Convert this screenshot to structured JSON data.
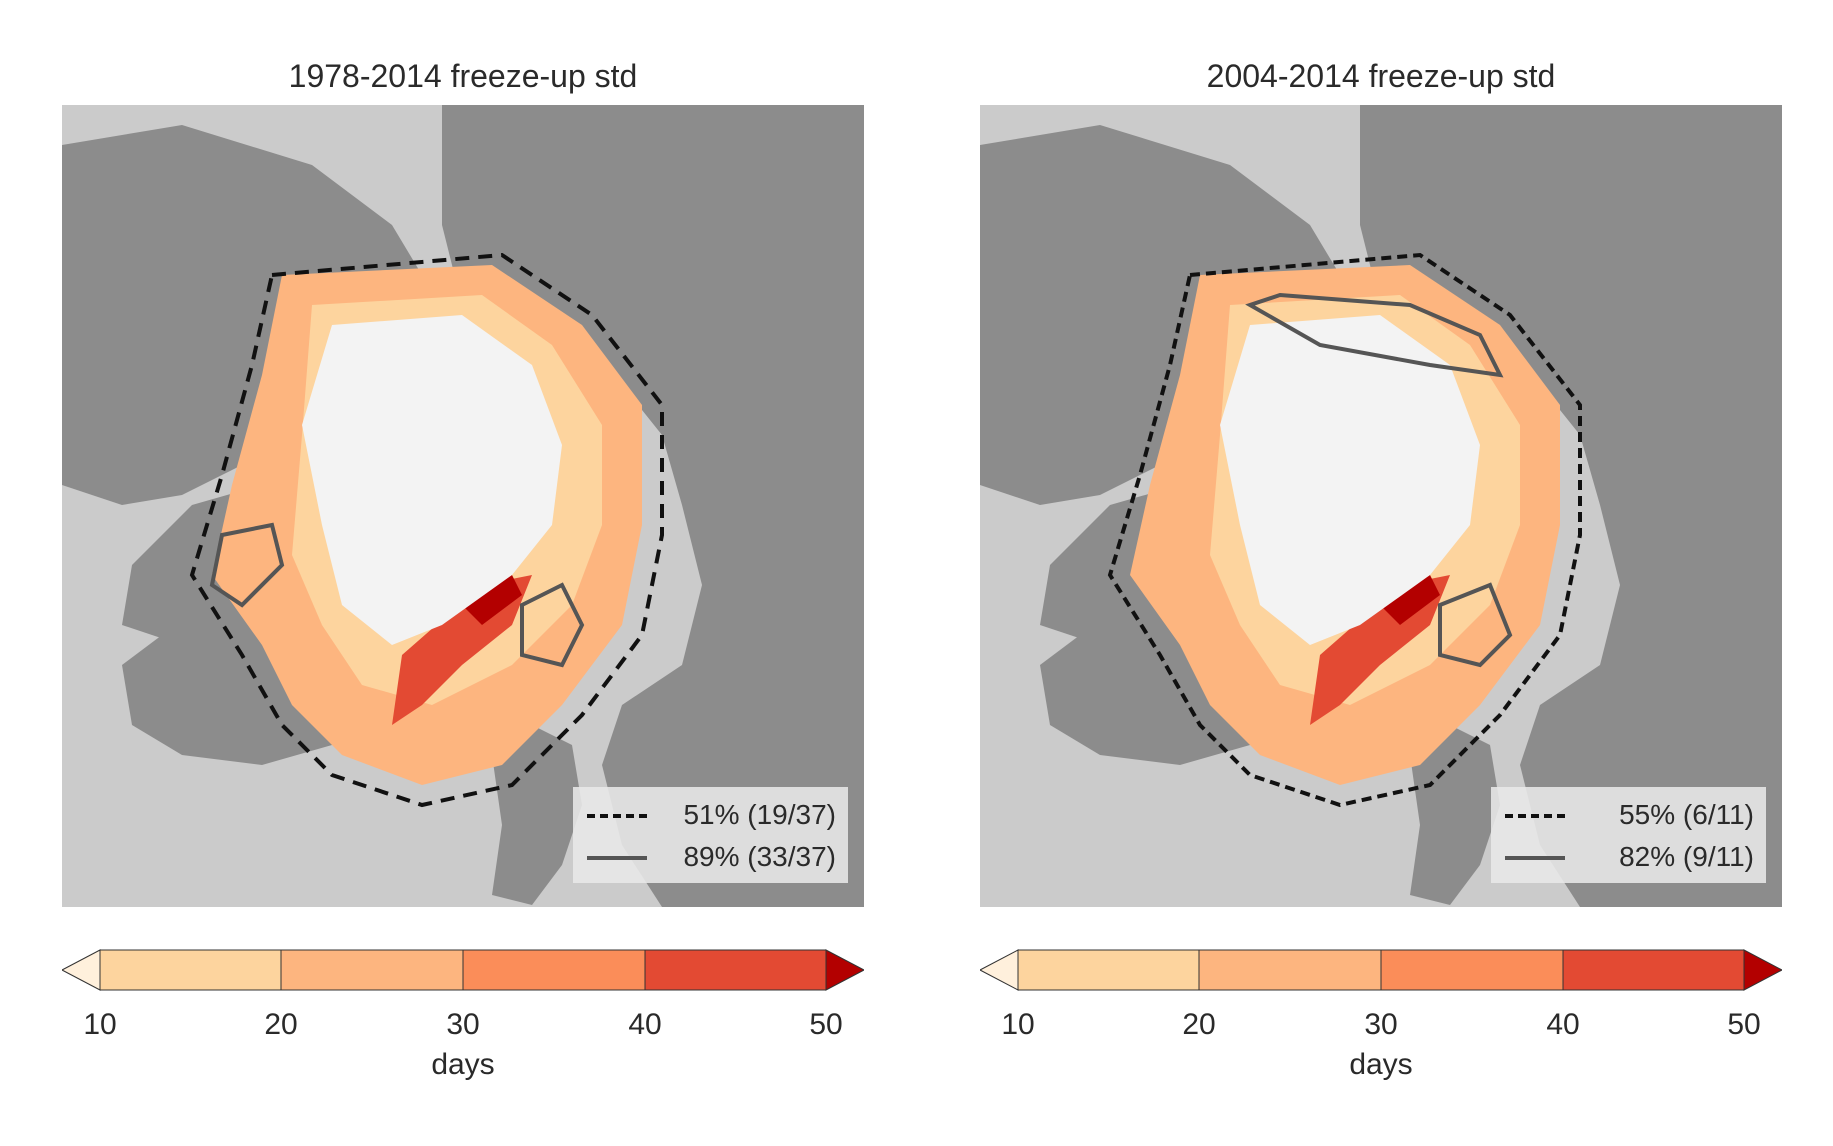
{
  "panels": [
    {
      "title": "1978-2014 freeze-up std",
      "legend": [
        {
          "style": "dashed",
          "label": "51% (19/37)"
        },
        {
          "style": "solid",
          "label": "89% (33/37)"
        }
      ]
    },
    {
      "title": "2004-2014 freeze-up std",
      "legend": [
        {
          "style": "dashed",
          "label": "55% (6/11)"
        },
        {
          "style": "solid",
          "label": "82% (9/11)"
        }
      ]
    }
  ],
  "colorbar": {
    "label": "days",
    "ticks": [
      "10",
      "20",
      "30",
      "40",
      "50"
    ],
    "bins": [
      {
        "range": "<10",
        "color": "#fff0dc"
      },
      {
        "range": "10-20",
        "color": "#fdd49e"
      },
      {
        "range": "20-30",
        "color": "#fdb57f"
      },
      {
        "range": "30-40",
        "color": "#fb8d59"
      },
      {
        "range": "40-50",
        "color": "#e34a33"
      },
      {
        "range": ">50",
        "color": "#b30000"
      }
    ]
  },
  "colors": {
    "land": "#8c8c8c",
    "ocean_background": "#cbcbcb",
    "central_ice": "#f3f3f3"
  }
}
